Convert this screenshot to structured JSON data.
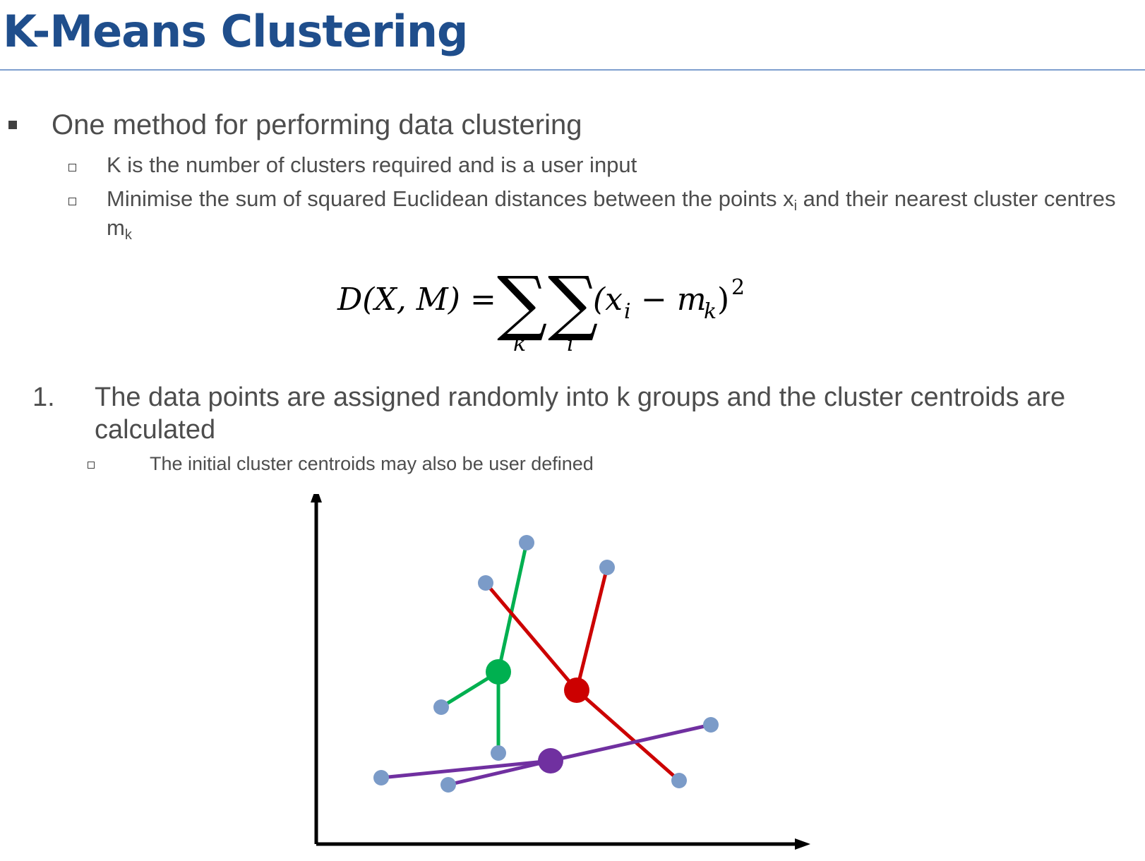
{
  "title": "K-Means Clustering",
  "bullets": {
    "main": "One method for performing data clustering",
    "sub1": "K is the number of clusters required and is a user input",
    "sub2_pre": "Minimise the sum of squared Euclidean distances between the points x",
    "sub2_sub_i": "i",
    "sub2_mid": " and their nearest cluster centres m",
    "sub2_sub_k": "k"
  },
  "equation": {
    "lhs": "D(X, M) =",
    "sum_index_1": "k",
    "sum_index_2": "i",
    "term": "(x",
    "term_sub_i": "i",
    "minus": "− m",
    "term_sub_k": "k",
    "close": ")",
    "power": "2"
  },
  "step": {
    "number": "1.",
    "text": "The data points are assigned randomly into k groups and the cluster centroids are calculated",
    "sub": "The initial cluster centroids may also be user defined"
  },
  "diagram": {
    "colors": {
      "point": "#7b9bc8",
      "green": "#00b050",
      "red": "#cc0000",
      "purple": "#7030a0",
      "axis": "#000000"
    }
  }
}
